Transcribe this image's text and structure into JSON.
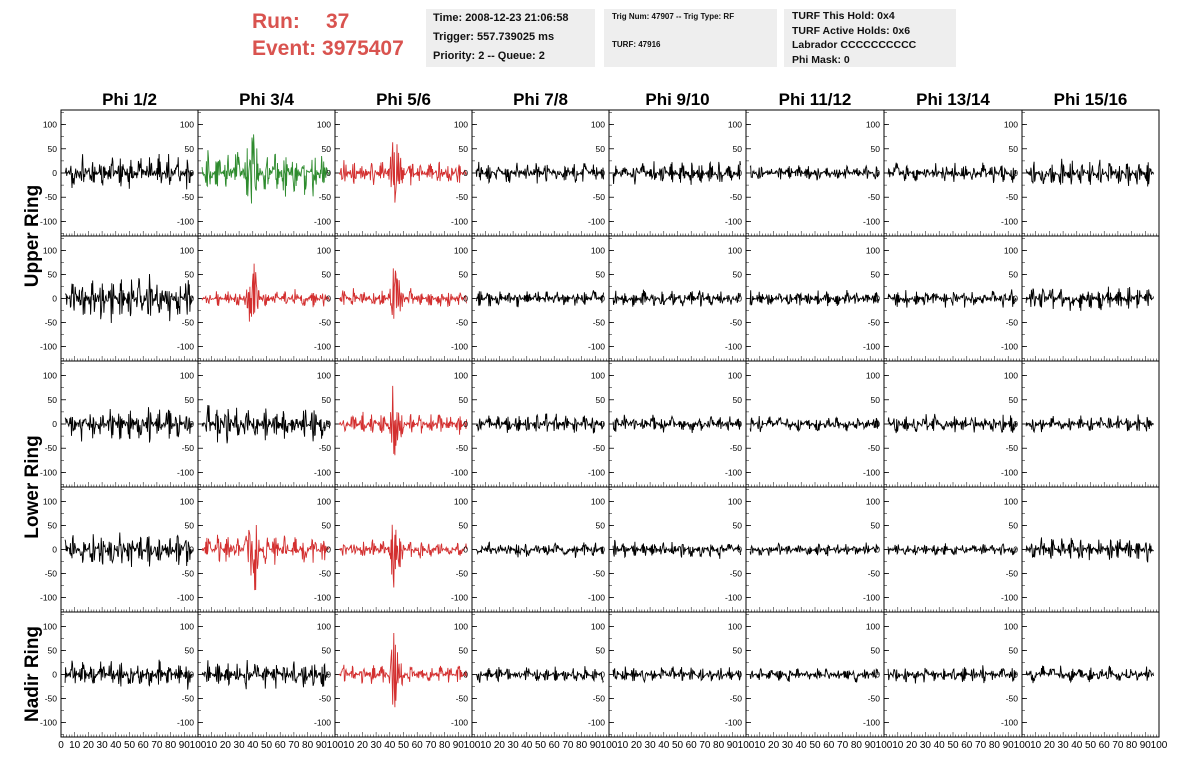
{
  "run": {
    "label": "Run:",
    "value": "37"
  },
  "event": {
    "label": "Event:",
    "value": "3975407"
  },
  "info1": {
    "time": "Time: 2008-12-23 21:06:58",
    "trigger": "Trigger: 557.739025 ms",
    "priority": "Priority: 2 -- Queue: 2"
  },
  "info2": {
    "trig": "Trig Num: 47907 -- Trig Type: RF",
    "turf": "TURF: 47916"
  },
  "info3": {
    "hold": "TURF This Hold: 0x4",
    "active": "TURF Active Holds: 0x6",
    "labrador": "Labrador CCCCCCCCCC",
    "phimask": "Phi Mask: 0"
  },
  "chart_data": {
    "type": "line",
    "columns": [
      "Phi 1/2",
      "Phi 3/4",
      "Phi 5/6",
      "Phi 7/8",
      "Phi 9/10",
      "Phi 11/12",
      "Phi 13/14",
      "Phi 15/16"
    ],
    "rows": [
      "Upper Ring",
      "Lower Ring",
      "Nadir Ring"
    ],
    "ylim": [
      -130,
      130
    ],
    "yticks": [
      100,
      50,
      0,
      -50,
      -100
    ],
    "xlim": [
      0,
      100
    ],
    "xticks": [
      0,
      10,
      20,
      30,
      40,
      50,
      60,
      70,
      80,
      90,
      100
    ],
    "colors": {
      "normal": "#000000",
      "triggered": "#d32f2f",
      "hold": "#2e8b2e"
    },
    "panels": [
      [
        {
          "color": "normal",
          "amp": 40
        },
        {
          "color": "hold",
          "amp": 50,
          "pulse": 40
        },
        {
          "color": "triggered",
          "amp": 30,
          "pulse": 44
        },
        {
          "color": "normal",
          "amp": 25
        },
        {
          "color": "normal",
          "amp": 28
        },
        {
          "color": "normal",
          "amp": 18
        },
        {
          "color": "normal",
          "amp": 22
        },
        {
          "color": "normal",
          "amp": 30
        }
      ],
      [
        {
          "color": "normal",
          "amp": 55
        },
        {
          "color": "triggered",
          "amp": 20,
          "pulse": 40
        },
        {
          "color": "triggered",
          "amp": 22,
          "pulse": 44
        },
        {
          "color": "normal",
          "amp": 20
        },
        {
          "color": "normal",
          "amp": 20
        },
        {
          "color": "normal",
          "amp": 18
        },
        {
          "color": "normal",
          "amp": 20
        },
        {
          "color": "normal",
          "amp": 28
        }
      ],
      [
        {
          "color": "normal",
          "amp": 40
        },
        {
          "color": "normal",
          "amp": 42
        },
        {
          "color": "triggered",
          "amp": 25,
          "pulse": 44
        },
        {
          "color": "normal",
          "amp": 22
        },
        {
          "color": "normal",
          "amp": 20
        },
        {
          "color": "normal",
          "amp": 18
        },
        {
          "color": "normal",
          "amp": 22
        },
        {
          "color": "normal",
          "amp": 20
        }
      ],
      [
        {
          "color": "normal",
          "amp": 42
        },
        {
          "color": "triggered",
          "amp": 35,
          "pulse": 40
        },
        {
          "color": "triggered",
          "amp": 22,
          "pulse": 44
        },
        {
          "color": "normal",
          "amp": 18
        },
        {
          "color": "normal",
          "amp": 20
        },
        {
          "color": "normal",
          "amp": 15
        },
        {
          "color": "normal",
          "amp": 15
        },
        {
          "color": "normal",
          "amp": 30
        }
      ],
      [
        {
          "color": "normal",
          "amp": 32
        },
        {
          "color": "normal",
          "amp": 32
        },
        {
          "color": "triggered",
          "amp": 22,
          "pulse": 44
        },
        {
          "color": "normal",
          "amp": 18
        },
        {
          "color": "normal",
          "amp": 18
        },
        {
          "color": "normal",
          "amp": 17
        },
        {
          "color": "normal",
          "amp": 20
        },
        {
          "color": "normal",
          "amp": 20
        }
      ]
    ]
  }
}
